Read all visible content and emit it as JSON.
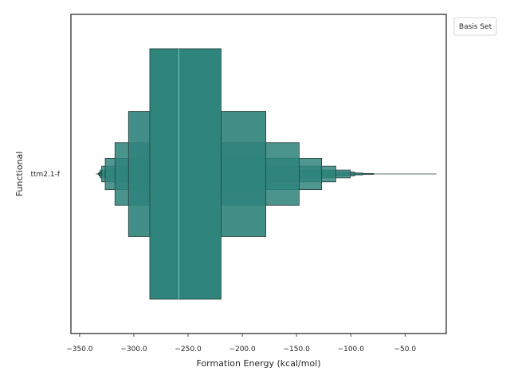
{
  "chart_data": {
    "type": "boxen",
    "xlabel": "Formation Energy (kcal/mol)",
    "ylabel": "Functional",
    "xlim": [
      -358,
      -12
    ],
    "x_ticks": [
      -350,
      -300,
      -250,
      -200,
      -150,
      -100,
      -50
    ],
    "x_tick_labels": [
      "−350.0",
      "−300.0",
      "−250.0",
      "−200.0",
      "−150.0",
      "−100.0",
      "−50.0"
    ],
    "category": "ttm2.1-f",
    "median": -258.5,
    "boxes": [
      {
        "lo": -285.3,
        "hi": -219.6,
        "height_fraction": 1.0
      },
      {
        "lo": -304.9,
        "hi": -178.3,
        "height_fraction": 0.5
      },
      {
        "lo": -317.4,
        "hi": -147.6,
        "height_fraction": 0.25
      },
      {
        "lo": -326.4,
        "hi": -126.9,
        "height_fraction": 0.125
      },
      {
        "lo": -329.7,
        "hi": -113.8,
        "height_fraction": 0.0625
      },
      {
        "lo": -331.0,
        "hi": -100.4,
        "height_fraction": 0.03125
      },
      {
        "lo": -332.0,
        "hi": -96.4,
        "height_fraction": 0.0156
      },
      {
        "lo": -332.5,
        "hi": -89.0,
        "height_fraction": 0.0078
      },
      {
        "lo": -333.0,
        "hi": -79.0,
        "height_fraction": 0.0039
      }
    ],
    "whisker": {
      "lo": -335.0,
      "hi": -21.0
    },
    "legend": {
      "title": "Basis Set",
      "placement": "outside upper right"
    },
    "colors": {
      "fill": "#2f847c",
      "edge": "#2b3d3b",
      "median": "#6fbdb6"
    }
  }
}
